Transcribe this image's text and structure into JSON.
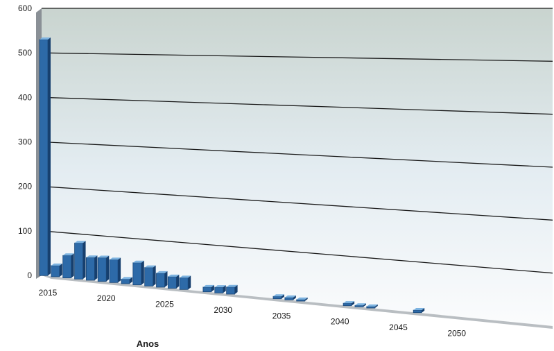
{
  "chart_data": {
    "type": "bar",
    "title": "",
    "xlabel": "Anos",
    "ylabel": "",
    "ylim": [
      0,
      600
    ],
    "y_ticks": [
      "0",
      "100",
      "200",
      "300",
      "400",
      "500",
      "600"
    ],
    "x_tick_labels": [
      "2015",
      "2020",
      "2025",
      "2030",
      "2035",
      "2040",
      "2045",
      "2050"
    ],
    "grid": true,
    "legend": "none",
    "style": "3d",
    "colors": {
      "bar_front": "#2d6aa8",
      "bar_top": "#7db3e0",
      "bar_side": "#163f6e",
      "gridline": "#1a1a1a"
    },
    "categories": [
      "2015",
      "2016",
      "2017",
      "2018",
      "2019",
      "2020",
      "2021",
      "2022",
      "2023",
      "2024",
      "2025",
      "2026",
      "2027",
      "2028",
      "2029",
      "2030",
      "2031",
      "2032",
      "2033",
      "2034",
      "2035",
      "2036",
      "2037",
      "2038",
      "2039",
      "2040",
      "2041",
      "2042",
      "2043",
      "2044",
      "2045",
      "2046",
      "2047",
      "2048",
      "2049",
      "2050",
      "2051"
    ],
    "values": [
      530,
      25,
      50,
      80,
      50,
      52,
      50,
      10,
      48,
      40,
      30,
      25,
      25,
      0,
      10,
      12,
      15,
      0,
      0,
      0,
      5,
      5,
      3,
      0,
      0,
      0,
      5,
      3,
      3,
      0,
      0,
      0,
      5,
      0,
      0,
      0,
      0
    ]
  }
}
